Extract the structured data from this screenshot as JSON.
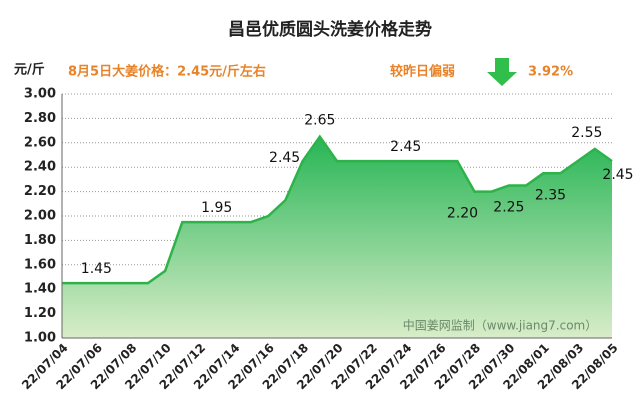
{
  "chart_data": {
    "type": "area",
    "title": "昌邑优质圆头洗姜价格走势",
    "y_axis_label": "元/斤",
    "annotations": [
      "8月5日大姜价格：2.45元/斤左右",
      "较昨日偏弱",
      "3.92%"
    ],
    "watermark": "中国姜网监制（www.jiang7.com）",
    "color": "#2db34a",
    "grid": true,
    "categories": [
      "22/07/04",
      null,
      "22/07/06",
      null,
      "22/07/08",
      null,
      "22/07/10",
      null,
      "22/07/12",
      null,
      "22/07/14",
      null,
      "22/07/16",
      null,
      "22/07/18",
      null,
      "22/07/20",
      null,
      "22/07/22",
      null,
      "22/07/24",
      null,
      "22/07/26",
      null,
      "22/07/28",
      null,
      "22/07/30",
      null,
      "22/08/01",
      null,
      "22/08/03",
      null,
      "22/08/05"
    ],
    "values": [
      1.45,
      1.45,
      1.45,
      1.45,
      1.45,
      1.45,
      1.55,
      1.95,
      1.95,
      1.95,
      1.95,
      1.95,
      2.0,
      2.13,
      2.45,
      2.65,
      2.45,
      2.45,
      2.45,
      2.45,
      2.45,
      2.45,
      2.45,
      2.45,
      2.2,
      2.2,
      2.25,
      2.25,
      2.35,
      2.35,
      2.45,
      2.55,
      2.45
    ],
    "value_labels": [
      null,
      null,
      "1.45",
      null,
      null,
      null,
      null,
      null,
      null,
      "1.95",
      null,
      null,
      null,
      null,
      "2.45",
      "2.65",
      null,
      null,
      null,
      null,
      "2.45",
      null,
      null,
      null,
      "2.20",
      null,
      "2.25",
      null,
      null,
      "2.35",
      null,
      "2.55",
      "2.45"
    ],
    "ylim": [
      1.0,
      3.0
    ],
    "yticks": [
      {
        "value": 1.0,
        "label": "1.00"
      },
      {
        "value": 1.2,
        "label": "1.20"
      },
      {
        "value": 1.4,
        "label": "1.40"
      },
      {
        "value": 1.6,
        "label": "1.60"
      },
      {
        "value": 1.8,
        "label": "1.80"
      },
      {
        "value": 2.0,
        "label": "2.00"
      },
      {
        "value": 2.2,
        "label": "2.20"
      },
      {
        "value": 2.4,
        "label": "2.40"
      },
      {
        "value": 2.6,
        "label": "2.60"
      },
      {
        "value": 2.8,
        "label": "2.80"
      },
      {
        "value": 3.0,
        "label": "3.00"
      }
    ]
  }
}
